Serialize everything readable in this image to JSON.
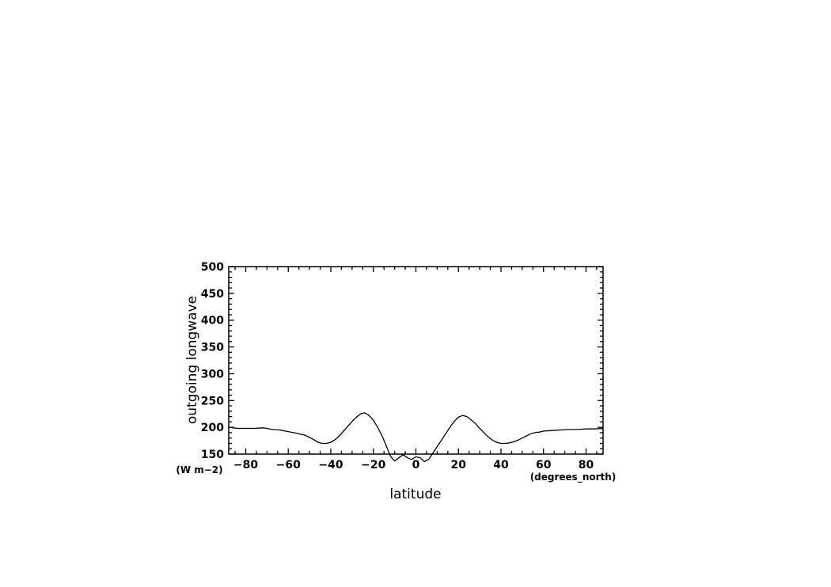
{
  "chart_data": {
    "type": "line",
    "title": "",
    "xlabel": "latitude",
    "ylabel": "outgoing longwave",
    "x_units": "(degrees_north)",
    "y_units": "(W m−2)",
    "xlim": [
      -88,
      88
    ],
    "ylim": [
      150,
      500
    ],
    "x_ticks": [
      -80,
      -60,
      -40,
      -20,
      0,
      20,
      40,
      60,
      80
    ],
    "x_tick_labels": [
      "−80",
      "−60",
      "−40",
      "−20",
      "0",
      "20",
      "40",
      "60",
      "80"
    ],
    "y_ticks": [
      150,
      200,
      250,
      300,
      350,
      400,
      450,
      500
    ],
    "y_tick_labels": [
      "150",
      "200",
      "250",
      "300",
      "350",
      "400",
      "450",
      "500"
    ],
    "grid": false,
    "series": [
      {
        "x": [
          -88,
          -84,
          -80,
          -76,
          -72,
          -70,
          -68,
          -64,
          -60,
          -56,
          -52,
          -50,
          -48,
          -46,
          -44,
          -42,
          -40,
          -38,
          -36,
          -34,
          -32,
          -30,
          -28,
          -26,
          -24,
          -22,
          -20,
          -18,
          -16,
          -14,
          -12,
          -10,
          -8,
          -6,
          -4,
          -2,
          0,
          2,
          4,
          6,
          8,
          10,
          12,
          14,
          16,
          18,
          20,
          22,
          24,
          26,
          28,
          30,
          32,
          34,
          36,
          38,
          40,
          42,
          44,
          46,
          48,
          50,
          52,
          54,
          56,
          58,
          60,
          64,
          68,
          72,
          76,
          80,
          84,
          88
        ],
        "y": [
          200,
          198,
          198,
          198,
          199,
          198,
          196,
          195,
          192,
          189,
          185,
          181,
          177,
          172,
          170,
          170,
          172,
          177,
          184,
          193,
          202,
          211,
          219,
          225,
          227,
          222,
          213,
          200,
          185,
          166,
          146,
          137,
          143,
          149,
          143,
          140,
          145,
          143,
          136,
          140,
          152,
          164,
          176,
          188,
          200,
          211,
          219,
          222,
          220,
          214,
          207,
          198,
          190,
          182,
          176,
          172,
          170,
          170,
          171,
          173,
          176,
          180,
          184,
          188,
          190,
          191,
          193,
          194,
          195,
          196,
          196,
          197,
          197,
          198
        ]
      }
    ]
  }
}
